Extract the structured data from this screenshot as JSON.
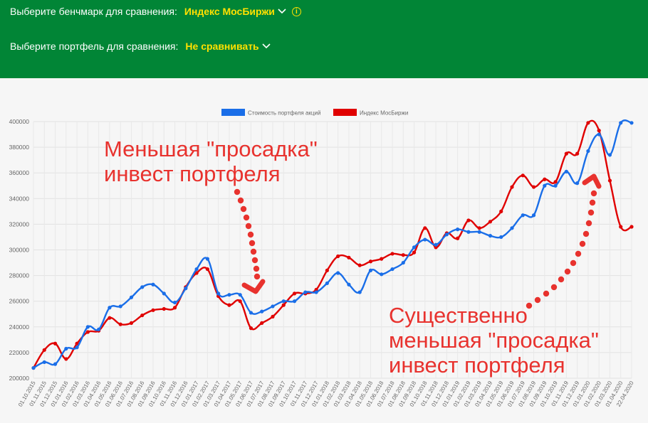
{
  "header": {
    "benchmark_label": "Выберите бенчмарк для сравнения:",
    "benchmark_value": "Индекс МосБиржи",
    "portfolio_label": "Выберите портфель для сравнения:",
    "portfolio_value": "Не сравнивать",
    "bg_color": "#018536",
    "accent_color": "#ffe000",
    "icons": [
      "chevron-down-icon",
      "info-icon"
    ]
  },
  "annotations": {
    "top": [
      "Меньшая \"просадка\"",
      "инвест портфеля"
    ],
    "bottom": [
      "Существенно",
      "меньшая \"просадка\"",
      "инвест портфеля"
    ],
    "color": "#e8322e"
  },
  "chart_data": {
    "type": "line",
    "ylim": [
      200000,
      400000
    ],
    "yticks": [
      200000,
      220000,
      240000,
      260000,
      280000,
      300000,
      320000,
      340000,
      360000,
      380000,
      400000
    ],
    "grid": true,
    "legend_position": "top-center",
    "categories": [
      "01.10.2015",
      "01.11.2015",
      "01.12.2015",
      "01.01.2016",
      "01.02.2016",
      "01.03.2016",
      "01.04.2016",
      "01.05.2016",
      "01.06.2016",
      "01.07.2016",
      "01.08.2016",
      "01.09.2016",
      "01.10.2016",
      "01.11.2016",
      "01.12.2016",
      "01.01.2017",
      "01.02.2017",
      "01.03.2017",
      "01.04.2017",
      "01.05.2017",
      "01.06.2017",
      "01.07.2017",
      "01.08.2017",
      "01.09.2017",
      "01.10.2017",
      "01.11.2017",
      "01.12.2017",
      "01.01.2018",
      "01.02.2018",
      "01.03.2018",
      "01.04.2018",
      "01.05.2018",
      "01.06.2018",
      "01.07.2018",
      "01.08.2018",
      "01.09.2018",
      "01.10.2018",
      "01.11.2018",
      "01.12.2018",
      "01.01.2019",
      "01.02.2019",
      "01.03.2019",
      "01.04.2019",
      "01.05.2019",
      "01.06.2019",
      "01.07.2019",
      "01.08.2019",
      "01.09.2019",
      "01.10.2019",
      "01.11.2019",
      "01.12.2019",
      "01.01.2020",
      "01.02.2020",
      "01.03.2020",
      "01.04.2020",
      "22.04.2020"
    ],
    "series": [
      {
        "name": "Стоимость портфеля акций",
        "color": "#1a6ee8",
        "values": [
          208000,
          212500,
          211000,
          223000,
          224000,
          240000,
          238000,
          255000,
          256000,
          263000,
          271000,
          273000,
          266000,
          259000,
          270000,
          285000,
          293000,
          266000,
          265000,
          265000,
          251000,
          252000,
          256000,
          260000,
          260000,
          267000,
          267000,
          274000,
          282000,
          273000,
          267000,
          284000,
          281000,
          285000,
          290000,
          302000,
          308000,
          304000,
          312000,
          316000,
          314000,
          314000,
          311000,
          310000,
          317000,
          327000,
          327000,
          350000,
          350000,
          361000,
          352000,
          377000,
          390000,
          374000,
          399000,
          399000
        ]
      },
      {
        "name": "Индекс МосБиржи",
        "color": "#e00000",
        "values": [
          208000,
          222000,
          227000,
          215000,
          227000,
          236000,
          237000,
          247000,
          242000,
          243000,
          249000,
          253000,
          254000,
          255000,
          271000,
          282000,
          285000,
          264000,
          257000,
          260000,
          239000,
          243000,
          248000,
          257000,
          266000,
          266000,
          269000,
          284000,
          295000,
          294000,
          288000,
          291000,
          293000,
          297000,
          296000,
          298000,
          317000,
          302000,
          313000,
          309000,
          323000,
          317000,
          322000,
          330000,
          349000,
          358000,
          349000,
          355000,
          353000,
          375000,
          375000,
          399000,
          393000,
          354000,
          318000,
          318000
        ]
      }
    ]
  }
}
